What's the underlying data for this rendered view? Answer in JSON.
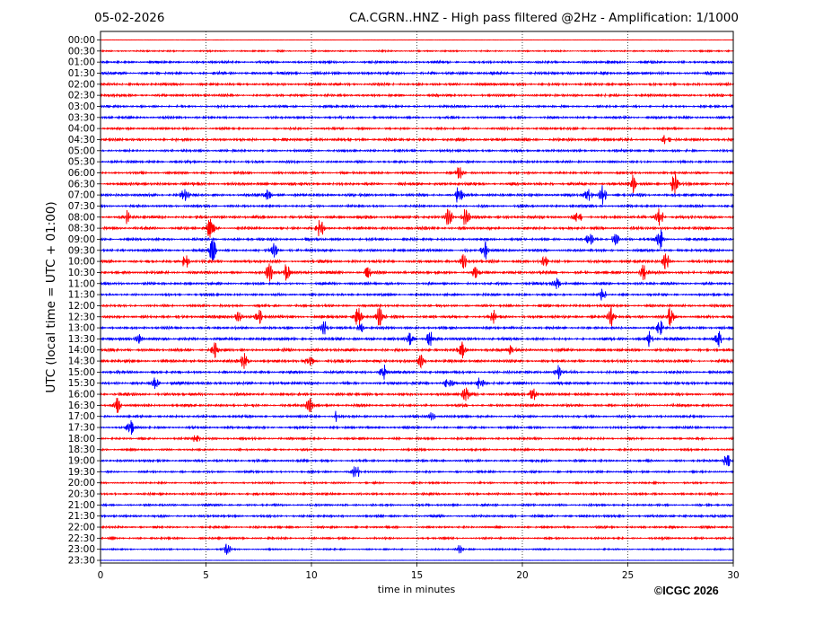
{
  "header": {
    "date": "05-02-2026",
    "title": "CA.CGRN..HNZ - High pass filtered @2Hz - Amplification: 1/1000"
  },
  "colors": {
    "odd_hour": "#ff0000",
    "even_hour": "#0000ff",
    "grid": "#000000"
  },
  "chart_data": {
    "type": "line",
    "title": "CA.CGRN..HNZ - High pass filtered @2Hz - Amplification: 1/1000",
    "xlabel": "time in minutes",
    "ylabel": "UTC (local time = UTC + 01:00)",
    "xlim": [
      0,
      30
    ],
    "x_ticks": [
      "0",
      "5",
      "10",
      "15",
      "20",
      "25",
      "30"
    ],
    "grid": "vertical dotted lines at every 5 minutes",
    "rows": [
      "00:00",
      "00:30",
      "01:00",
      "01:30",
      "02:00",
      "02:30",
      "03:00",
      "03:30",
      "04:00",
      "04:30",
      "05:00",
      "05:30",
      "06:00",
      "06:30",
      "07:00",
      "07:30",
      "08:00",
      "08:30",
      "09:00",
      "09:30",
      "10:00",
      "10:30",
      "11:00",
      "11:30",
      "12:00",
      "12:30",
      "13:00",
      "13:30",
      "14:00",
      "14:30",
      "15:00",
      "15:30",
      "16:00",
      "16:30",
      "17:00",
      "17:30",
      "18:00",
      "18:30",
      "19:00",
      "19:30",
      "20:00",
      "20:30",
      "21:00",
      "21:30",
      "22:00",
      "22:30",
      "23:00",
      "23:30"
    ],
    "row_amplitude": [
      0.05,
      0.3,
      0.45,
      0.55,
      0.5,
      0.5,
      0.45,
      0.45,
      0.45,
      0.55,
      0.45,
      0.45,
      0.45,
      0.55,
      0.55,
      0.45,
      0.55,
      0.55,
      0.5,
      0.5,
      0.55,
      0.55,
      0.5,
      0.45,
      0.5,
      0.55,
      0.5,
      0.55,
      0.55,
      0.55,
      0.5,
      0.55,
      0.55,
      0.5,
      0.45,
      0.45,
      0.45,
      0.4,
      0.45,
      0.4,
      0.35,
      0.45,
      0.4,
      0.45,
      0.4,
      0.4,
      0.3,
      0.05
    ],
    "events": [
      {
        "row": 9,
        "t": 26.8,
        "a": 1.0
      },
      {
        "row": 12,
        "t": 17.0,
        "a": 1.0
      },
      {
        "row": 13,
        "t": 25.2,
        "a": 1.5
      },
      {
        "row": 13,
        "t": 27.2,
        "a": 1.8
      },
      {
        "row": 14,
        "t": 4.0,
        "a": 1.5
      },
      {
        "row": 14,
        "t": 7.9,
        "a": 1.2
      },
      {
        "row": 14,
        "t": 17.0,
        "a": 2.0
      },
      {
        "row": 14,
        "t": 23.1,
        "a": 1.8
      },
      {
        "row": 14,
        "t": 23.8,
        "a": 1.5
      },
      {
        "row": 16,
        "t": 1.3,
        "a": 1.5
      },
      {
        "row": 16,
        "t": 16.5,
        "a": 2.0
      },
      {
        "row": 16,
        "t": 17.3,
        "a": 1.5
      },
      {
        "row": 16,
        "t": 22.6,
        "a": 1.5
      },
      {
        "row": 16,
        "t": 26.5,
        "a": 1.8
      },
      {
        "row": 17,
        "t": 10.4,
        "a": 1.8
      },
      {
        "row": 17,
        "t": 5.2,
        "a": 2.0
      },
      {
        "row": 18,
        "t": 23.2,
        "a": 1.2
      },
      {
        "row": 18,
        "t": 24.4,
        "a": 1.2
      },
      {
        "row": 18,
        "t": 26.5,
        "a": 2.0
      },
      {
        "row": 19,
        "t": 5.3,
        "a": 2.0
      },
      {
        "row": 19,
        "t": 8.2,
        "a": 1.5
      },
      {
        "row": 19,
        "t": 18.2,
        "a": 1.8
      },
      {
        "row": 20,
        "t": 4.0,
        "a": 1.5
      },
      {
        "row": 20,
        "t": 17.2,
        "a": 1.5
      },
      {
        "row": 20,
        "t": 21.0,
        "a": 1.2
      },
      {
        "row": 20,
        "t": 26.8,
        "a": 1.5
      },
      {
        "row": 21,
        "t": 8.0,
        "a": 1.5
      },
      {
        "row": 21,
        "t": 8.8,
        "a": 1.5
      },
      {
        "row": 21,
        "t": 12.7,
        "a": 1.2
      },
      {
        "row": 21,
        "t": 17.8,
        "a": 1.5
      },
      {
        "row": 21,
        "t": 25.7,
        "a": 1.5
      },
      {
        "row": 22,
        "t": 21.6,
        "a": 1.5
      },
      {
        "row": 23,
        "t": 23.8,
        "a": 1.2
      },
      {
        "row": 25,
        "t": 6.5,
        "a": 1.2
      },
      {
        "row": 25,
        "t": 7.5,
        "a": 1.2
      },
      {
        "row": 25,
        "t": 12.2,
        "a": 1.8
      },
      {
        "row": 25,
        "t": 13.2,
        "a": 1.5
      },
      {
        "row": 25,
        "t": 18.6,
        "a": 1.2
      },
      {
        "row": 25,
        "t": 24.2,
        "a": 1.5
      },
      {
        "row": 25,
        "t": 27.0,
        "a": 1.5
      },
      {
        "row": 26,
        "t": 10.6,
        "a": 1.2
      },
      {
        "row": 26,
        "t": 12.3,
        "a": 1.2
      },
      {
        "row": 26,
        "t": 26.5,
        "a": 1.2
      },
      {
        "row": 27,
        "t": 1.8,
        "a": 1.2
      },
      {
        "row": 27,
        "t": 14.7,
        "a": 1.2
      },
      {
        "row": 27,
        "t": 15.6,
        "a": 1.2
      },
      {
        "row": 27,
        "t": 26.0,
        "a": 1.2
      },
      {
        "row": 27,
        "t": 29.3,
        "a": 1.2
      },
      {
        "row": 28,
        "t": 5.4,
        "a": 1.2
      },
      {
        "row": 28,
        "t": 17.1,
        "a": 1.5
      },
      {
        "row": 28,
        "t": 19.5,
        "a": 1.2
      },
      {
        "row": 29,
        "t": 6.8,
        "a": 1.2
      },
      {
        "row": 29,
        "t": 9.9,
        "a": 1.2
      },
      {
        "row": 29,
        "t": 15.2,
        "a": 1.2
      },
      {
        "row": 30,
        "t": 13.4,
        "a": 1.5
      },
      {
        "row": 30,
        "t": 21.7,
        "a": 1.5
      },
      {
        "row": 31,
        "t": 2.6,
        "a": 1.2
      },
      {
        "row": 31,
        "t": 16.5,
        "a": 1.2
      },
      {
        "row": 31,
        "t": 18.0,
        "a": 1.2
      },
      {
        "row": 32,
        "t": 17.3,
        "a": 1.2
      },
      {
        "row": 32,
        "t": 20.5,
        "a": 1.2
      },
      {
        "row": 33,
        "t": 0.8,
        "a": 1.2
      },
      {
        "row": 33,
        "t": 9.9,
        "a": 1.5
      },
      {
        "row": 34,
        "t": 11.2,
        "a": 1.0
      },
      {
        "row": 34,
        "t": 15.7,
        "a": 0.8
      },
      {
        "row": 35,
        "t": 1.4,
        "a": 1.5
      },
      {
        "row": 36,
        "t": 4.5,
        "a": 0.9
      },
      {
        "row": 38,
        "t": 29.7,
        "a": 1.5
      },
      {
        "row": 39,
        "t": 12.1,
        "a": 1.5
      },
      {
        "row": 46,
        "t": 6.0,
        "a": 0.9
      },
      {
        "row": 46,
        "t": 17.0,
        "a": 0.9
      }
    ]
  },
  "footer": {
    "copyright": "©ICGC 2026"
  }
}
